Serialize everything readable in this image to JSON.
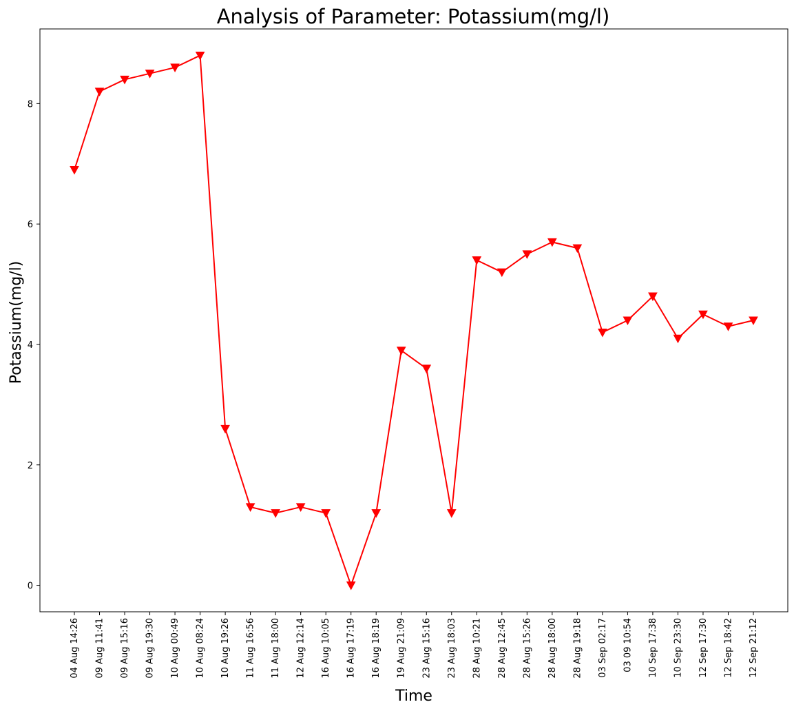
{
  "chart_data": {
    "type": "line",
    "title": "Analysis of Parameter: Potassium(mg/l)",
    "xlabel": "Time",
    "ylabel": "Potassium(mg/l)",
    "categories": [
      "04 Aug 14:26",
      "09 Aug 11:41",
      "09 Aug 15:16",
      "09 Aug 19:30",
      "10 Aug 00:49",
      "10 Aug 08:24",
      "10 Aug 19:26",
      "11 Aug 16:56",
      "11 Aug 18:00",
      "12 Aug 12:14",
      "16 Aug 10:05",
      "16 Aug 17:19",
      "16 Aug 18:19",
      "19 Aug 21:09",
      "23 Aug 15:16",
      "23 Aug 18:03",
      "28 Aug 10:21",
      "28 Aug 12:45",
      "28 Aug 15:26",
      "28 Aug 18:00",
      "28 Aug 19:18",
      "03 Sep 02:17",
      "03 09 10:54",
      "10 Sep 17:38",
      "10 Sep 23:30",
      "12 Sep 17:30",
      "12 Sep 18:42",
      "12 Sep 21:12"
    ],
    "series": [
      {
        "values": [
          6.9,
          8.2,
          8.4,
          8.5,
          8.6,
          8.8,
          2.6,
          1.3,
          1.2,
          1.3,
          1.2,
          0.0,
          1.2,
          3.9,
          3.6,
          1.2,
          5.4,
          5.2,
          5.5,
          5.7,
          5.6,
          4.2,
          4.4,
          4.8,
          4.1,
          4.5,
          4.3,
          4.4
        ],
        "color": "#ff0000",
        "marker": "triangle-down"
      }
    ],
    "yticks": [
      0,
      2,
      4,
      6,
      8
    ],
    "ylim": [
      -0.44,
      9.24
    ],
    "grid": false,
    "legend": "none"
  }
}
